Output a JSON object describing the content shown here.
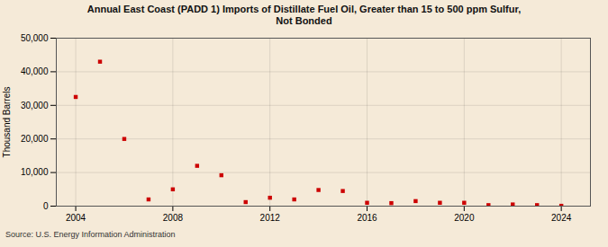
{
  "chart_data": {
    "type": "scatter",
    "title": "Annual East Coast (PADD 1) Imports of Distillate Fuel Oil, Greater than 15 to 500 ppm Sulfur,\nNot Bonded",
    "ylabel": "Thousand Barrels",
    "annotations": [
      "Source: U.S. Energy Information Administration"
    ],
    "x": [
      2004,
      2005,
      2006,
      2007,
      2008,
      2009,
      2010,
      2011,
      2012,
      2013,
      2014,
      2015,
      2016,
      2017,
      2018,
      2019,
      2020,
      2021,
      2022,
      2023,
      2024
    ],
    "values": [
      32500,
      43000,
      20000,
      2000,
      5000,
      12000,
      9200,
      1200,
      2500,
      2000,
      4800,
      4500,
      1000,
      900,
      1500,
      1000,
      1000,
      300,
      500,
      300,
      100
    ],
    "color": "#cc0000",
    "marker": "square",
    "xlim": [
      2003.2,
      2025.2
    ],
    "xticks": [
      2004,
      2008,
      2012,
      2016,
      2020,
      2024
    ],
    "ylim": [
      0,
      50000
    ],
    "yticks": [
      0,
      {
        "value": 10000,
        "label": "10,000"
      },
      {
        "value": 20000,
        "label": "20,000"
      },
      {
        "value": 30000,
        "label": "30,000"
      },
      {
        "value": 40000,
        "label": "40,000"
      },
      {
        "value": 50000,
        "label": "50,000"
      }
    ],
    "grid": true
  }
}
